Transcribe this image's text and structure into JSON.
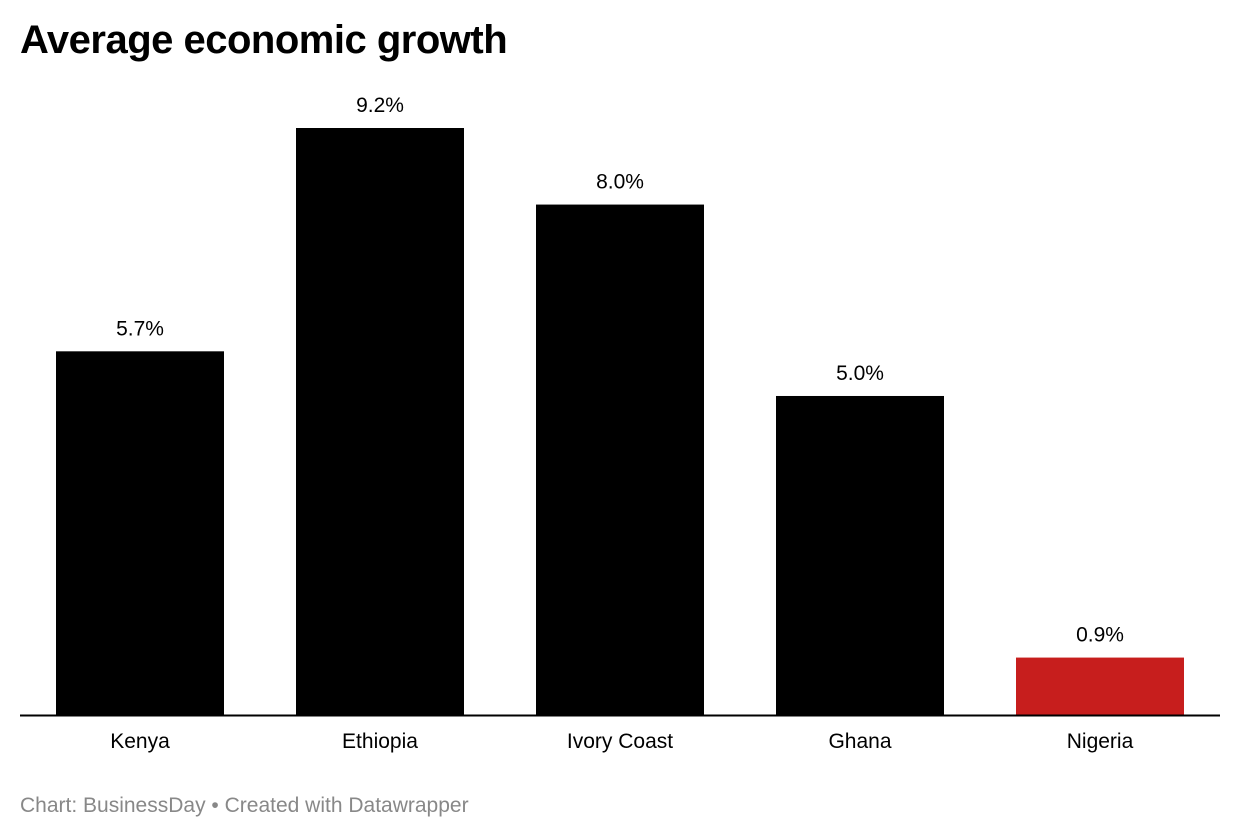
{
  "chart_data": {
    "type": "bar",
    "title": "Average economic growth",
    "categories": [
      "Kenya",
      "Ethiopia",
      "Ivory Coast",
      "Ghana",
      "Nigeria"
    ],
    "values": [
      5.7,
      9.2,
      8.0,
      5.0,
      0.9
    ],
    "data_labels": [
      "5.7%",
      "9.2%",
      "8.0%",
      "5.0%",
      "0.9%"
    ],
    "colors": [
      "#000000",
      "#000000",
      "#000000",
      "#000000",
      "#c71e1d"
    ],
    "xlabel": "",
    "ylabel": "",
    "ylim": [
      0,
      9.2
    ],
    "grid": false,
    "legend": "none"
  },
  "footer": {
    "source": "Chart: BusinessDay",
    "separator": "•",
    "credit": "Created with Datawrapper"
  }
}
